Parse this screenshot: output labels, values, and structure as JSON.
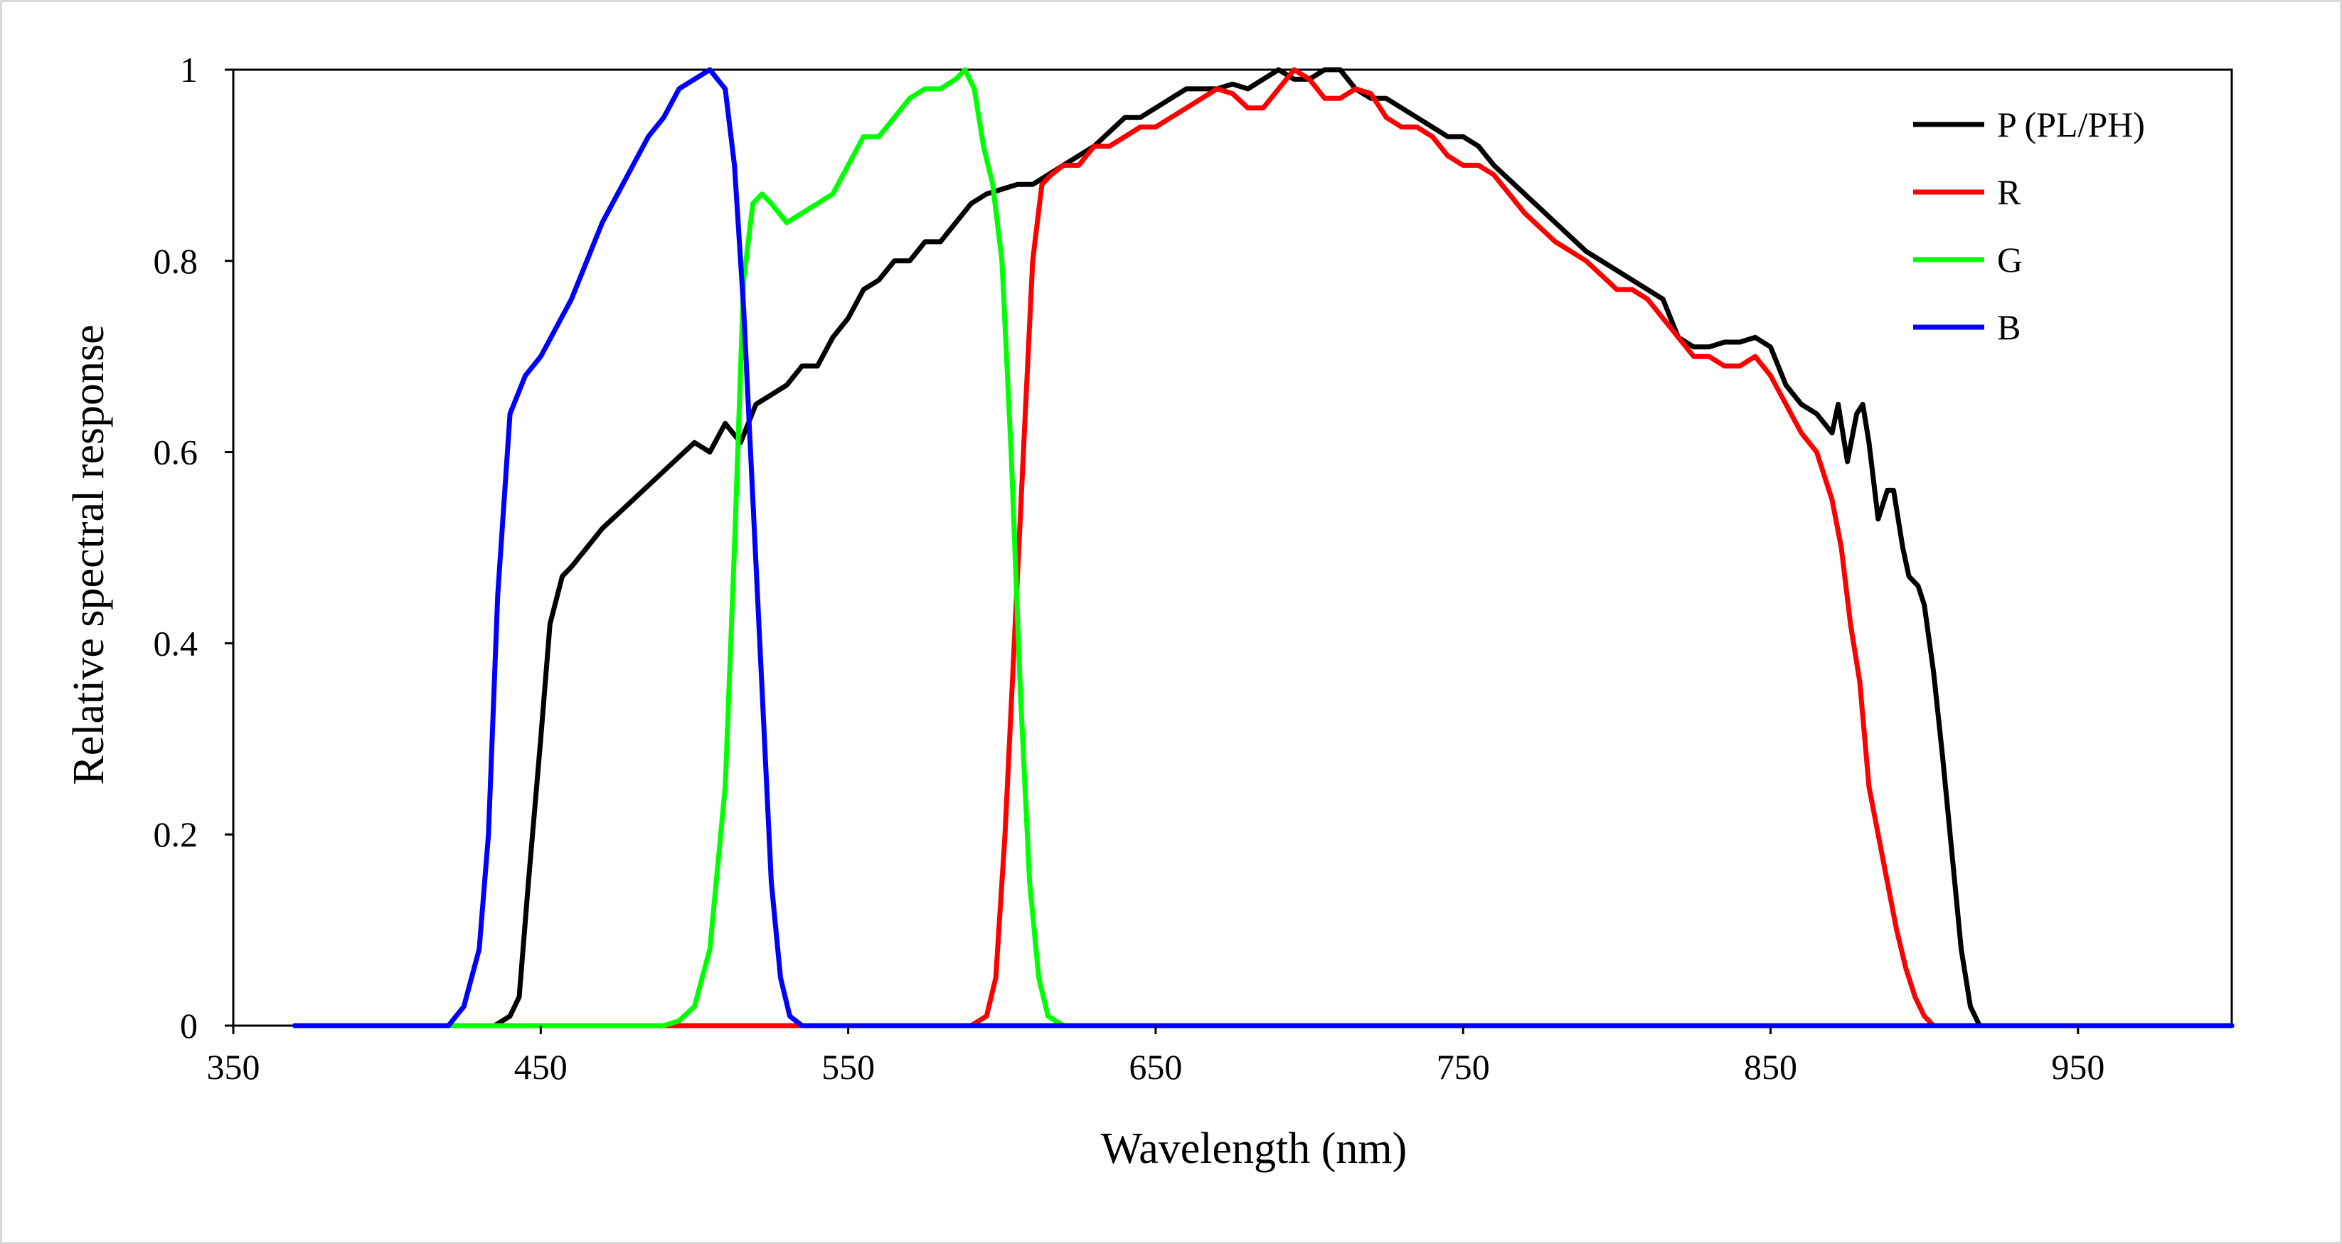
{
  "chart_data": {
    "type": "line",
    "title": "",
    "xlabel": "Wavelength  (nm)",
    "ylabel": "Relative spectral response",
    "xlim": [
      350,
      1000
    ],
    "ylim": [
      0,
      1
    ],
    "x_ticks": [
      350,
      450,
      550,
      650,
      750,
      850,
      950
    ],
    "y_ticks": [
      0,
      0.2,
      0.4,
      0.6,
      0.8,
      1
    ],
    "x_tick_labels": [
      "350",
      "450",
      "550",
      "650",
      "750",
      "850",
      "950"
    ],
    "y_tick_labels": [
      "0",
      "0.2",
      "0.4",
      "0.6",
      "0.8",
      "1"
    ],
    "grid": false,
    "legend_position": "top-right",
    "series": [
      {
        "name": "P (PL/PH)",
        "color": "#000000",
        "x": [
          370,
          435,
          440,
          443,
          446,
          450,
          453,
          457,
          460,
          465,
          470,
          480,
          490,
          500,
          505,
          510,
          515,
          520,
          525,
          530,
          535,
          540,
          545,
          550,
          555,
          560,
          565,
          570,
          575,
          580,
          585,
          590,
          595,
          600,
          605,
          610,
          620,
          630,
          640,
          645,
          650,
          655,
          660,
          665,
          670,
          675,
          680,
          685,
          690,
          695,
          700,
          705,
          710,
          715,
          720,
          725,
          730,
          735,
          740,
          745,
          750,
          755,
          760,
          770,
          780,
          790,
          800,
          805,
          810,
          815,
          820,
          825,
          830,
          835,
          840,
          845,
          850,
          855,
          860,
          865,
          870,
          872,
          875,
          878,
          880,
          882,
          885,
          888,
          890,
          893,
          895,
          898,
          900,
          903,
          906,
          909,
          912,
          915,
          918,
          925,
          1000
        ],
        "y": [
          0,
          0,
          0.01,
          0.03,
          0.15,
          0.3,
          0.42,
          0.47,
          0.48,
          0.5,
          0.52,
          0.55,
          0.58,
          0.61,
          0.6,
          0.63,
          0.61,
          0.65,
          0.66,
          0.67,
          0.69,
          0.69,
          0.72,
          0.74,
          0.77,
          0.78,
          0.8,
          0.8,
          0.82,
          0.82,
          0.84,
          0.86,
          0.87,
          0.875,
          0.88,
          0.88,
          0.9,
          0.92,
          0.95,
          0.95,
          0.96,
          0.97,
          0.98,
          0.98,
          0.98,
          0.985,
          0.98,
          0.99,
          1.0,
          0.99,
          0.99,
          1.0,
          1.0,
          0.98,
          0.97,
          0.97,
          0.96,
          0.95,
          0.94,
          0.93,
          0.93,
          0.92,
          0.9,
          0.87,
          0.84,
          0.81,
          0.79,
          0.78,
          0.77,
          0.76,
          0.72,
          0.71,
          0.71,
          0.715,
          0.715,
          0.72,
          0.71,
          0.67,
          0.65,
          0.64,
          0.62,
          0.65,
          0.59,
          0.64,
          0.65,
          0.61,
          0.53,
          0.56,
          0.56,
          0.5,
          0.47,
          0.46,
          0.44,
          0.37,
          0.28,
          0.18,
          0.08,
          0.02,
          0,
          0,
          0
        ]
      },
      {
        "name": "R",
        "color": "#ff0000",
        "x": [
          370,
          590,
          595,
          598,
          601,
          604,
          607,
          610,
          613,
          616,
          620,
          625,
          630,
          635,
          640,
          645,
          650,
          655,
          660,
          665,
          670,
          675,
          680,
          685,
          690,
          695,
          700,
          705,
          710,
          715,
          720,
          725,
          730,
          735,
          740,
          745,
          750,
          755,
          760,
          770,
          780,
          790,
          800,
          805,
          810,
          815,
          820,
          825,
          830,
          835,
          840,
          845,
          850,
          855,
          860,
          865,
          870,
          873,
          876,
          879,
          882,
          885,
          888,
          891,
          894,
          897,
          900,
          903,
          906,
          910,
          1000
        ],
        "y": [
          0,
          0,
          0.01,
          0.05,
          0.2,
          0.4,
          0.6,
          0.8,
          0.88,
          0.89,
          0.9,
          0.9,
          0.92,
          0.92,
          0.93,
          0.94,
          0.94,
          0.95,
          0.96,
          0.97,
          0.98,
          0.975,
          0.96,
          0.96,
          0.98,
          1.0,
          0.99,
          0.97,
          0.97,
          0.98,
          0.975,
          0.95,
          0.94,
          0.94,
          0.93,
          0.91,
          0.9,
          0.9,
          0.89,
          0.85,
          0.82,
          0.8,
          0.77,
          0.77,
          0.76,
          0.74,
          0.72,
          0.7,
          0.7,
          0.69,
          0.69,
          0.7,
          0.68,
          0.65,
          0.62,
          0.6,
          0.55,
          0.5,
          0.42,
          0.36,
          0.25,
          0.2,
          0.15,
          0.1,
          0.06,
          0.03,
          0.01,
          0,
          0,
          0,
          0
        ]
      },
      {
        "name": "G",
        "color": "#00ff00",
        "x": [
          370,
          490,
          495,
          500,
          505,
          510,
          513,
          516,
          519,
          522,
          525,
          530,
          535,
          540,
          545,
          550,
          555,
          560,
          565,
          570,
          575,
          580,
          585,
          588,
          591,
          594,
          597,
          600,
          603,
          606,
          609,
          612,
          615,
          620,
          1000
        ],
        "y": [
          0,
          0,
          0.005,
          0.02,
          0.08,
          0.25,
          0.5,
          0.78,
          0.86,
          0.87,
          0.86,
          0.84,
          0.85,
          0.86,
          0.87,
          0.9,
          0.93,
          0.93,
          0.95,
          0.97,
          0.98,
          0.98,
          0.99,
          1.0,
          0.98,
          0.92,
          0.88,
          0.8,
          0.6,
          0.35,
          0.15,
          0.05,
          0.01,
          0,
          0
        ]
      },
      {
        "name": "B",
        "color": "#0000ff",
        "x": [
          370,
          420,
          425,
          430,
          433,
          436,
          440,
          445,
          450,
          455,
          460,
          465,
          470,
          475,
          480,
          485,
          490,
          495,
          500,
          505,
          510,
          513,
          516,
          519,
          522,
          525,
          528,
          531,
          535,
          1000
        ],
        "y": [
          0,
          0,
          0.02,
          0.08,
          0.2,
          0.45,
          0.64,
          0.68,
          0.7,
          0.73,
          0.76,
          0.8,
          0.84,
          0.87,
          0.9,
          0.93,
          0.95,
          0.98,
          0.99,
          1.0,
          0.98,
          0.9,
          0.75,
          0.55,
          0.35,
          0.15,
          0.05,
          0.01,
          0,
          0
        ]
      }
    ]
  }
}
